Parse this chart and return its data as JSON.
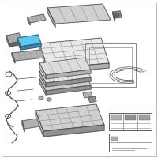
{
  "bg": "#f5f5f5",
  "white": "#ffffff",
  "border": "#bbbbbb",
  "lc": "#555555",
  "lc2": "#888888",
  "wc": "#555555",
  "pc_ll": "#e8e8e8",
  "pc_l": "#d0d0d0",
  "pc_m": "#b0b0b0",
  "pc_d": "#909090",
  "pc_dd": "#606060",
  "hl_top": "#5bc8f0",
  "hl_mid": "#3aabdc",
  "hl_bot": "#2090c0",
  "fig_w": 2.0,
  "fig_h": 2.0,
  "dpi": 100
}
